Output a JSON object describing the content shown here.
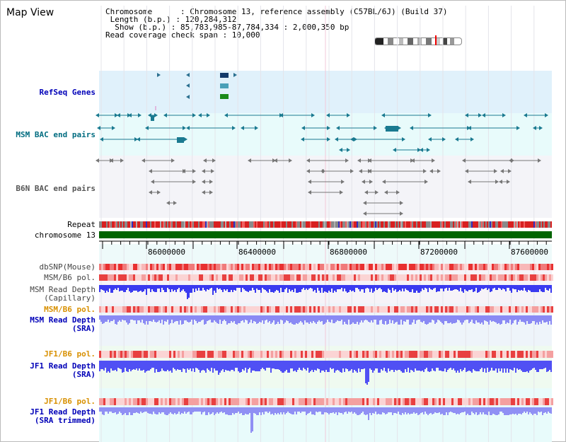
{
  "header": {
    "title": "Map View",
    "info_lines": [
      "Chromosome      : Chromosome 13, reference assembly (C57BL/6J) (Build 37)",
      " Length (b.p.) : 120,284,312",
      "  Show (b.p.) : 85,783,985-87,784,334 : 2,000,350 bp",
      "Read coverage check span : 10,000"
    ]
  },
  "tracks": {
    "refseq": "RefSeq Genes",
    "msm_bac": "MSM BAC end pairs",
    "b6n_bac": "B6N BAC end pairs",
    "repeat": "Repeat",
    "chromosome": "chromosome 13",
    "dbsnp": "dbSNP(Mouse)",
    "msm_b6_pol_1": "MSM/B6 pol.",
    "msm_depth_cap_1": "MSM Read Depth",
    "msm_depth_cap_2": "(Capillary)",
    "msm_b6_pol_2": "MSM/B6 pol.",
    "msm_depth_sra_1": "MSM Read Depth",
    "msm_depth_sra_2": "(SRA)",
    "jf1_b6_pol_1": "JF1/B6 pol.",
    "jf1_depth_1": "JF1 Read Depth",
    "jf1_depth_2": "(SRA)",
    "jf1_b6_pol_2": "JF1/B6 pol.",
    "jf1_trim_1": "JF1 Read Depth",
    "jf1_trim_2": "(SRA trimmed)"
  },
  "axis": {
    "ticks": [
      "86000000",
      "86400000",
      "86800000",
      "87200000",
      "87600000"
    ]
  },
  "colors": {
    "refseq_bg": "#e0f1fb",
    "bac_bg": "#e8fbfb",
    "b6n_bg": "#f4f4f8",
    "chromosome_bar": "#006400",
    "depth_blue": "#3a3af0",
    "depth_light": "#8a8af4",
    "snp_red": "#e83030"
  }
}
